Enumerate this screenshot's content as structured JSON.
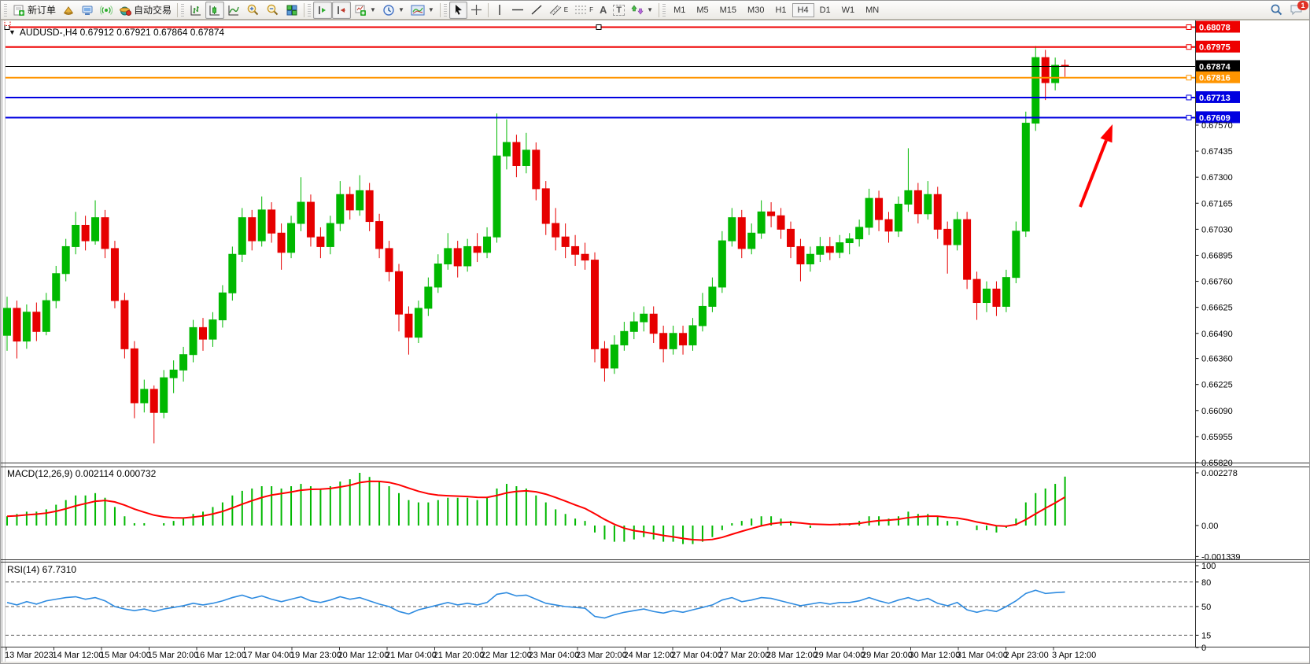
{
  "toolbar": {
    "new_order_label": "新订单",
    "autotrading_label": "自动交易",
    "timeframes": [
      "M1",
      "M5",
      "M15",
      "M30",
      "H1",
      "H4",
      "D1",
      "W1",
      "MN"
    ],
    "active_timeframe": "H4",
    "notification_badge": "1",
    "tool_letters": {
      "channel": "E",
      "fibonacci": "F",
      "text": "A",
      "label": "T"
    },
    "icons": [
      "new-order-icon",
      "market-watch-icon",
      "terminal-icon",
      "signal-icon",
      "autotrading-icon",
      "bar-chart-icon",
      "candlestick-chart-icon",
      "line-chart-icon",
      "zoom-in-icon",
      "zoom-out-icon",
      "tile-windows-icon",
      "shift-end-icon",
      "auto-scroll-icon",
      "new-chart-icon",
      "period-clock-icon",
      "template-icon",
      "cursor-icon",
      "crosshair-icon",
      "vertical-line-icon",
      "horizontal-line-icon",
      "trendline-icon",
      "channel-icon",
      "fibonacci-icon",
      "text-icon",
      "label-icon",
      "shapes-icon",
      "search-icon",
      "chat-icon"
    ]
  },
  "chart_data": [
    {
      "type": "candlestick",
      "symbol": "AUDUSD-",
      "period": "H4",
      "title_display": "AUDUSD-,H4  0.67912 0.67921 0.67864 0.67874",
      "ohlc_display": [
        0.67912,
        0.67921,
        0.67864,
        0.67874
      ],
      "ylim": [
        0.65808,
        0.68112
      ],
      "grid": false,
      "y_ticks": [
        {
          "t": "0.67570",
          "v": 0.6757
        },
        {
          "t": "0.67435",
          "v": 0.67435
        },
        {
          "t": "0.67300",
          "v": 0.673
        },
        {
          "t": "0.67165",
          "v": 0.67165
        },
        {
          "t": "0.67030",
          "v": 0.6703
        },
        {
          "t": "0.66895",
          "v": 0.66895
        },
        {
          "t": "0.66760",
          "v": 0.6676
        },
        {
          "t": "0.66625",
          "v": 0.66625
        },
        {
          "t": "0.66490",
          "v": 0.6649
        },
        {
          "t": "0.66360",
          "v": 0.6636
        },
        {
          "t": "0.66225",
          "v": 0.66225
        },
        {
          "t": "0.66090",
          "v": 0.6609
        },
        {
          "t": "0.65955",
          "v": 0.65955
        },
        {
          "t": "0.65820",
          "v": 0.6582
        }
      ],
      "hlines": [
        {
          "label": "0.68078",
          "price": 0.68078,
          "color": "#ee0000",
          "width": 2,
          "selected": true
        },
        {
          "label": "0.67975",
          "price": 0.67975,
          "color": "#ee0000",
          "width": 2,
          "selected": false
        },
        {
          "label": "0.67874",
          "price": 0.67874,
          "color": "#000000",
          "width": 1,
          "role": "current-price",
          "selected": false
        },
        {
          "label": "0.67816",
          "price": 0.67816,
          "color": "#ff9500",
          "width": 2,
          "selected": false
        },
        {
          "label": "0.67713",
          "price": 0.67713,
          "color": "#0000e0",
          "width": 2,
          "selected": false
        },
        {
          "label": "0.67609",
          "price": 0.67609,
          "color": "#0000e0",
          "width": 2,
          "selected": false
        }
      ],
      "x_labels": [
        "13 Mar 2023",
        "14 Mar 12:00",
        "15 Mar 04:00",
        "15 Mar 20:00",
        "16 Mar 12:00",
        "17 Mar 04:00",
        "19 Mar 23:00",
        "20 Mar 12:00",
        "21 Mar 04:00",
        "21 Mar 20:00",
        "22 Mar 12:00",
        "23 Mar 04:00",
        "23 Mar 20:00",
        "24 Mar 12:00",
        "27 Mar 04:00",
        "27 Mar 20:00",
        "28 Mar 12:00",
        "29 Mar 04:00",
        "29 Mar 20:00",
        "30 Mar 12:00",
        "31 Mar 04:00",
        "2 Apr 23:00",
        "3 Apr 12:00"
      ],
      "annotation_arrow": {
        "from": [
          1372,
          262
        ],
        "to": [
          1413,
          157
        ],
        "color": "#ff0000"
      },
      "colors": {
        "up": "#00b800",
        "down": "#e60000"
      },
      "candles": [
        [
          0.6648,
          0.6668,
          0.664,
          0.6662
        ],
        [
          0.6662,
          0.6666,
          0.6636,
          0.6645
        ],
        [
          0.6645,
          0.6664,
          0.6641,
          0.666
        ],
        [
          0.666,
          0.6665,
          0.6645,
          0.665
        ],
        [
          0.665,
          0.667,
          0.6648,
          0.6666
        ],
        [
          0.6666,
          0.6684,
          0.6662,
          0.668
        ],
        [
          0.668,
          0.6698,
          0.6676,
          0.6694
        ],
        [
          0.6694,
          0.6712,
          0.669,
          0.6705
        ],
        [
          0.6705,
          0.671,
          0.6692,
          0.6697
        ],
        [
          0.6697,
          0.6718,
          0.6695,
          0.6709
        ],
        [
          0.6709,
          0.6713,
          0.6688,
          0.6693
        ],
        [
          0.6693,
          0.6697,
          0.6662,
          0.6666
        ],
        [
          0.6666,
          0.667,
          0.6636,
          0.6641
        ],
        [
          0.6641,
          0.6645,
          0.6605,
          0.6613
        ],
        [
          0.6613,
          0.6625,
          0.6608,
          0.662
        ],
        [
          0.662,
          0.6622,
          0.6592,
          0.6608
        ],
        [
          0.6608,
          0.663,
          0.6605,
          0.6626
        ],
        [
          0.6626,
          0.6635,
          0.6618,
          0.663
        ],
        [
          0.663,
          0.6642,
          0.6624,
          0.6638
        ],
        [
          0.6638,
          0.6656,
          0.6634,
          0.6652
        ],
        [
          0.6652,
          0.6657,
          0.664,
          0.6646
        ],
        [
          0.6646,
          0.666,
          0.6642,
          0.6656
        ],
        [
          0.6656,
          0.6674,
          0.6652,
          0.667
        ],
        [
          0.667,
          0.6694,
          0.6666,
          0.669
        ],
        [
          0.669,
          0.6714,
          0.6686,
          0.6709
        ],
        [
          0.6709,
          0.6713,
          0.6692,
          0.6697
        ],
        [
          0.6697,
          0.672,
          0.6694,
          0.6713
        ],
        [
          0.6713,
          0.6717,
          0.6696,
          0.6701
        ],
        [
          0.6701,
          0.6706,
          0.6682,
          0.6691
        ],
        [
          0.6691,
          0.671,
          0.6688,
          0.6706
        ],
        [
          0.6706,
          0.673,
          0.6702,
          0.6717
        ],
        [
          0.6717,
          0.6721,
          0.6694,
          0.6699
        ],
        [
          0.6699,
          0.6704,
          0.6688,
          0.6694
        ],
        [
          0.6694,
          0.671,
          0.669,
          0.6706
        ],
        [
          0.6706,
          0.6728,
          0.6702,
          0.6721
        ],
        [
          0.6721,
          0.6725,
          0.6708,
          0.6713
        ],
        [
          0.6713,
          0.6731,
          0.671,
          0.6723
        ],
        [
          0.6723,
          0.6727,
          0.6702,
          0.6707
        ],
        [
          0.6707,
          0.6711,
          0.6688,
          0.6693
        ],
        [
          0.6693,
          0.6697,
          0.6676,
          0.6681
        ],
        [
          0.6681,
          0.6685,
          0.665,
          0.6659
        ],
        [
          0.6659,
          0.6663,
          0.6638,
          0.6647
        ],
        [
          0.6647,
          0.6666,
          0.6644,
          0.6662
        ],
        [
          0.6662,
          0.6678,
          0.6658,
          0.6673
        ],
        [
          0.6673,
          0.669,
          0.667,
          0.6685
        ],
        [
          0.6685,
          0.6701,
          0.6682,
          0.6693
        ],
        [
          0.6693,
          0.6697,
          0.6678,
          0.6684
        ],
        [
          0.6684,
          0.6698,
          0.6681,
          0.6694
        ],
        [
          0.6694,
          0.6701,
          0.6686,
          0.6691
        ],
        [
          0.6691,
          0.6704,
          0.6688,
          0.6699
        ],
        [
          0.6699,
          0.6763,
          0.6696,
          0.6741
        ],
        [
          0.6741,
          0.676,
          0.6734,
          0.6748
        ],
        [
          0.6748,
          0.6752,
          0.673,
          0.6736
        ],
        [
          0.6736,
          0.6753,
          0.6732,
          0.6744
        ],
        [
          0.6744,
          0.6748,
          0.6718,
          0.6724
        ],
        [
          0.6724,
          0.6728,
          0.67,
          0.6706
        ],
        [
          0.6706,
          0.6714,
          0.6692,
          0.6699
        ],
        [
          0.6699,
          0.6706,
          0.6688,
          0.6694
        ],
        [
          0.6694,
          0.67,
          0.6684,
          0.669
        ],
        [
          0.669,
          0.6696,
          0.6682,
          0.6687
        ],
        [
          0.6687,
          0.6691,
          0.6634,
          0.6641
        ],
        [
          0.6641,
          0.6645,
          0.6624,
          0.6631
        ],
        [
          0.6631,
          0.6648,
          0.6628,
          0.6643
        ],
        [
          0.6643,
          0.6655,
          0.664,
          0.665
        ],
        [
          0.665,
          0.666,
          0.6646,
          0.6655
        ],
        [
          0.6655,
          0.6663,
          0.665,
          0.6659
        ],
        [
          0.6659,
          0.6663,
          0.6644,
          0.6649
        ],
        [
          0.6649,
          0.6653,
          0.6634,
          0.6641
        ],
        [
          0.6641,
          0.6653,
          0.6638,
          0.6649
        ],
        [
          0.6649,
          0.6653,
          0.6638,
          0.6643
        ],
        [
          0.6643,
          0.6657,
          0.664,
          0.6653
        ],
        [
          0.6653,
          0.667,
          0.665,
          0.6663
        ],
        [
          0.6663,
          0.6678,
          0.666,
          0.6673
        ],
        [
          0.6673,
          0.6702,
          0.667,
          0.6697
        ],
        [
          0.6697,
          0.6714,
          0.6694,
          0.6709
        ],
        [
          0.6709,
          0.6713,
          0.6688,
          0.6693
        ],
        [
          0.6693,
          0.6706,
          0.669,
          0.6701
        ],
        [
          0.6701,
          0.6718,
          0.6698,
          0.6712
        ],
        [
          0.6712,
          0.6717,
          0.6704,
          0.671
        ],
        [
          0.671,
          0.6714,
          0.6698,
          0.6703
        ],
        [
          0.6703,
          0.6707,
          0.6688,
          0.6694
        ],
        [
          0.6694,
          0.6698,
          0.6676,
          0.6685
        ],
        [
          0.6685,
          0.6694,
          0.6681,
          0.669
        ],
        [
          0.669,
          0.6699,
          0.6686,
          0.6694
        ],
        [
          0.6694,
          0.6699,
          0.6687,
          0.6691
        ],
        [
          0.6691,
          0.67,
          0.6688,
          0.6696
        ],
        [
          0.6696,
          0.6701,
          0.669,
          0.6698
        ],
        [
          0.6698,
          0.6708,
          0.6694,
          0.6704
        ],
        [
          0.6704,
          0.6724,
          0.67,
          0.6719
        ],
        [
          0.6719,
          0.6723,
          0.6702,
          0.6708
        ],
        [
          0.6708,
          0.6712,
          0.6696,
          0.6702
        ],
        [
          0.6702,
          0.672,
          0.6699,
          0.6716
        ],
        [
          0.6716,
          0.6745,
          0.6712,
          0.6723
        ],
        [
          0.6723,
          0.6727,
          0.6706,
          0.6711
        ],
        [
          0.6711,
          0.6728,
          0.6708,
          0.6721
        ],
        [
          0.6721,
          0.6725,
          0.6698,
          0.6703
        ],
        [
          0.6703,
          0.6707,
          0.668,
          0.6695
        ],
        [
          0.6695,
          0.6712,
          0.6692,
          0.6708
        ],
        [
          0.6708,
          0.6712,
          0.6672,
          0.6677
        ],
        [
          0.6677,
          0.6681,
          0.6656,
          0.6665
        ],
        [
          0.6665,
          0.6676,
          0.666,
          0.6672
        ],
        [
          0.6672,
          0.6676,
          0.6658,
          0.6663
        ],
        [
          0.6663,
          0.6682,
          0.666,
          0.6678
        ],
        [
          0.6678,
          0.6707,
          0.6675,
          0.6702
        ],
        [
          0.6702,
          0.6764,
          0.6699,
          0.6758
        ],
        [
          0.6758,
          0.6798,
          0.6754,
          0.6792
        ],
        [
          0.6792,
          0.6796,
          0.677,
          0.6779
        ],
        [
          0.6779,
          0.6792,
          0.6775,
          0.6788
        ],
        [
          0.6788,
          0.6791,
          0.6782,
          0.67874
        ]
      ]
    },
    {
      "type": "bar",
      "title": "MACD(12,26,9)",
      "title_display": "MACD(12,26,9) 0.002114 0.000732",
      "macd_value": 0.002114,
      "signal_value": 0.000732,
      "histogram_color": "#00b800",
      "signal_color": "#ff0000",
      "y_ticks": [
        {
          "t": "0.002278",
          "v": 0.002278
        },
        {
          "t": "0.00",
          "v": 0
        },
        {
          "t": "-0.001339",
          "v": -0.001339
        }
      ],
      "histogram": [
        0.0004,
        0.0005,
        0.0006,
        0.0006,
        0.0007,
        0.0009,
        0.0011,
        0.0013,
        0.0013,
        0.0014,
        0.0012,
        0.0008,
        0.0004,
        0.0001,
        0.0001,
        0.0,
        0.0001,
        0.0002,
        0.0003,
        0.0005,
        0.0006,
        0.0008,
        0.001,
        0.0013,
        0.0015,
        0.0016,
        0.0017,
        0.0017,
        0.0016,
        0.0017,
        0.0018,
        0.0017,
        0.0016,
        0.0017,
        0.0019,
        0.002,
        0.002278,
        0.0021,
        0.0019,
        0.0017,
        0.0014,
        0.0011,
        0.001,
        0.001,
        0.0011,
        0.0012,
        0.0012,
        0.0012,
        0.0011,
        0.0012,
        0.0016,
        0.0018,
        0.0017,
        0.0016,
        0.0013,
        0.001,
        0.0007,
        0.0005,
        0.0003,
        0.0002,
        -0.0003,
        -0.0006,
        -0.0007,
        -0.0007,
        -0.0006,
        -0.0005,
        -0.0006,
        -0.0007,
        -0.0007,
        -0.0008,
        -0.0008,
        -0.0007,
        -0.0005,
        -0.0002,
        0.0001,
        0.0002,
        0.0003,
        0.0004,
        0.0004,
        0.0003,
        0.0002,
        0.0,
        -0.0001,
        0.0,
        0.0,
        0.0001,
        0.0001,
        0.0002,
        0.0004,
        0.0004,
        0.0003,
        0.0004,
        0.0006,
        0.0005,
        0.0005,
        0.0004,
        0.0002,
        0.0002,
        0.0,
        -0.0002,
        -0.0002,
        -0.0003,
        -0.0001,
        0.0003,
        0.001,
        0.0014,
        0.0016,
        0.0018,
        0.002114
      ]
    },
    {
      "type": "line",
      "title": "RSI(14)",
      "title_display": "RSI(14) 67.7310",
      "value": 67.731,
      "line_color": "#2e8be0",
      "levels": [
        80,
        50,
        15
      ],
      "y_ticks": [
        {
          "t": "100",
          "v": 100
        },
        {
          "t": "80",
          "v": 80
        },
        {
          "t": "50",
          "v": 50
        },
        {
          "t": "15",
          "v": 15
        },
        {
          "t": "0",
          "v": 0
        }
      ],
      "values": [
        55,
        52,
        56,
        53,
        57,
        59,
        61,
        62,
        59,
        61,
        57,
        50,
        47,
        45,
        47,
        44,
        47,
        49,
        51,
        54,
        52,
        54,
        57,
        61,
        64,
        60,
        63,
        59,
        56,
        59,
        62,
        57,
        55,
        58,
        62,
        59,
        61,
        57,
        53,
        50,
        44,
        41,
        46,
        49,
        52,
        55,
        52,
        54,
        52,
        55,
        65,
        67,
        63,
        64,
        59,
        54,
        52,
        50,
        49,
        48,
        38,
        36,
        40,
        43,
        45,
        47,
        44,
        42,
        45,
        43,
        46,
        49,
        52,
        58,
        61,
        56,
        58,
        61,
        60,
        57,
        54,
        51,
        53,
        55,
        53,
        55,
        55,
        57,
        61,
        57,
        54,
        58,
        61,
        57,
        60,
        54,
        51,
        55,
        46,
        43,
        46,
        44,
        50,
        57,
        66,
        70,
        66,
        67,
        67.73
      ]
    }
  ]
}
